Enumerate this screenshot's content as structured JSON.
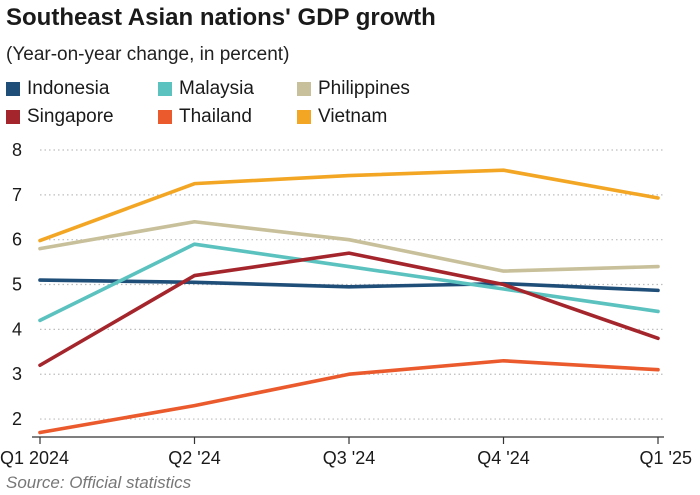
{
  "header": {
    "title": "Southeast Asian nations' GDP growth",
    "subtitle": "(Year-on-year change, in percent)"
  },
  "footer": {
    "source": "Source: Official statistics"
  },
  "chart_data": {
    "type": "line",
    "title": "Southeast Asian nations' GDP growth",
    "subtitle": "(Year-on-year change, in percent)",
    "xlabel": "",
    "ylabel": "",
    "categories": [
      "Q1 2024",
      "Q2 '24",
      "Q3 '24",
      "Q4 '24",
      "Q1 '25"
    ],
    "ylim": [
      1.6,
      8
    ],
    "yticks": [
      2,
      3,
      4,
      5,
      6,
      7,
      8
    ],
    "grid": "horizontal dotted",
    "legend_position": "top-left",
    "series": [
      {
        "name": "Indonesia",
        "color": "#1f4e79",
        "values": [
          5.1,
          5.05,
          4.95,
          5.02,
          4.87
        ]
      },
      {
        "name": "Malaysia",
        "color": "#5bc2bf",
        "values": [
          4.2,
          5.9,
          5.4,
          4.9,
          4.4
        ]
      },
      {
        "name": "Philippines",
        "color": "#c8c09a",
        "values": [
          5.8,
          6.4,
          6.0,
          5.3,
          5.4
        ]
      },
      {
        "name": "Singapore",
        "color": "#a4262c",
        "values": [
          3.2,
          5.2,
          5.7,
          5.0,
          3.8
        ]
      },
      {
        "name": "Thailand",
        "color": "#ea5a2c",
        "values": [
          1.7,
          2.3,
          3.0,
          3.3,
          3.1
        ]
      },
      {
        "name": "Vietnam",
        "color": "#f2a624",
        "values": [
          5.98,
          7.25,
          7.43,
          7.55,
          6.93
        ]
      }
    ]
  }
}
